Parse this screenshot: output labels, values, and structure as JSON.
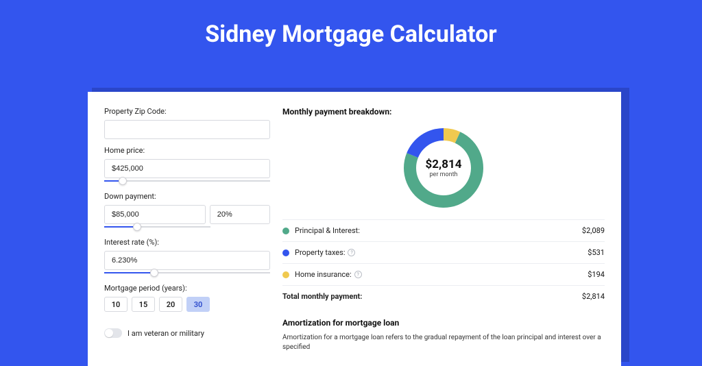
{
  "page": {
    "title": "Sidney Mortgage Calculator",
    "background": "#3355ee"
  },
  "form": {
    "zip": {
      "label": "Property Zip Code:",
      "value": ""
    },
    "home_price": {
      "label": "Home price:",
      "value": "$425,000",
      "slider": {
        "fill_pct": 11,
        "thumb_pct": 11,
        "fill_color": "#3355ee"
      }
    },
    "down_payment": {
      "label": "Down payment:",
      "amount": "$85,000",
      "percent": "20%",
      "slider": {
        "fill_pct": 20,
        "thumb_pct": 20,
        "fill_color": "#3355ee",
        "track_width_pct": 64
      }
    },
    "interest_rate": {
      "label": "Interest rate (%):",
      "value": "6.230%",
      "slider": {
        "fill_pct": 30,
        "thumb_pct": 30,
        "fill_color": "#3355ee"
      }
    },
    "mortgage_period": {
      "label": "Mortgage period (years):",
      "options": [
        "10",
        "15",
        "20",
        "30"
      ],
      "selected": "30"
    },
    "veteran": {
      "label": "I am veteran or military",
      "checked": false
    }
  },
  "breakdown": {
    "title": "Monthly payment breakdown:",
    "donut": {
      "type": "donut",
      "amount": "$2,814",
      "sub": "per month",
      "radius_outer": 58,
      "radius_inner": 40,
      "segments": [
        {
          "label": "Principal & Interest",
          "value": 2089,
          "color": "#51a98a"
        },
        {
          "label": "Property taxes",
          "value": 531,
          "color": "#3355ee"
        },
        {
          "label": "Home insurance",
          "value": 194,
          "color": "#f0c94f"
        }
      ]
    },
    "lines": [
      {
        "label": "Principal & Interest:",
        "value": "$2,089",
        "dot": "#51a98a",
        "help": false
      },
      {
        "label": "Property taxes:",
        "value": "$531",
        "dot": "#3355ee",
        "help": true
      },
      {
        "label": "Home insurance:",
        "value": "$194",
        "dot": "#f0c94f",
        "help": true
      }
    ],
    "total": {
      "label": "Total monthly payment:",
      "value": "$2,814"
    }
  },
  "amortization": {
    "title": "Amortization for mortgage loan",
    "text": "Amortization for a mortgage loan refers to the gradual repayment of the loan principal and interest over a specified"
  }
}
